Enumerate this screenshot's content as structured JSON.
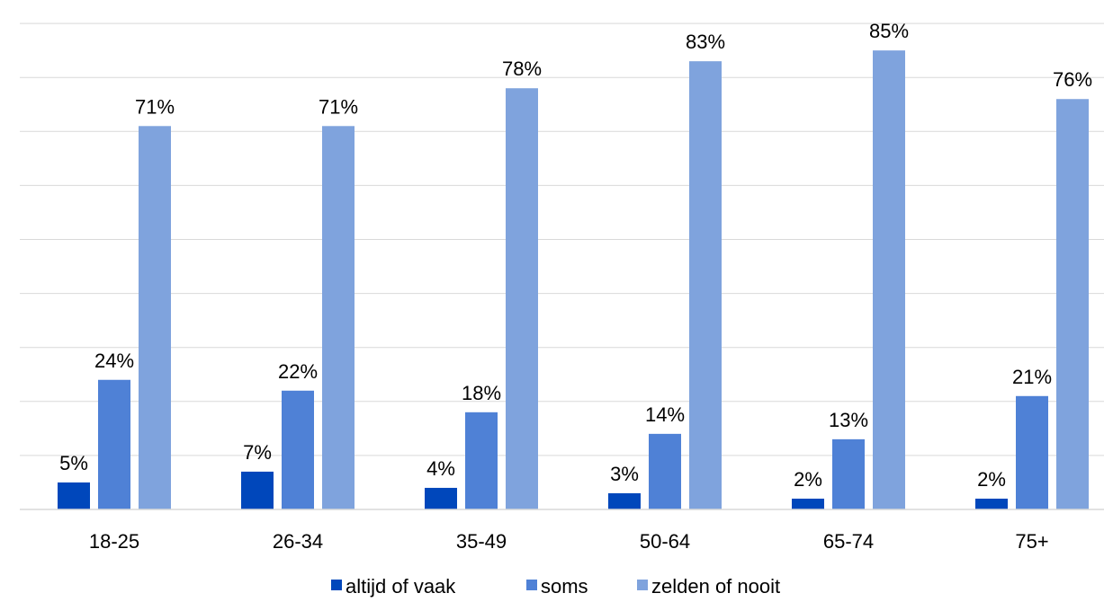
{
  "chart_data": {
    "type": "bar",
    "title": "",
    "xlabel": "",
    "ylabel": "",
    "categories": [
      "18-25",
      "26-34",
      "35-49",
      "50-64",
      "65-74",
      "75+"
    ],
    "series": [
      {
        "name": "altijd of vaak",
        "values": [
          5,
          7,
          4,
          3,
          2,
          2
        ],
        "labels": [
          "5%",
          "7%",
          "4%",
          "3%",
          "2%",
          "2%"
        ],
        "color": "#0047BB"
      },
      {
        "name": "soms",
        "values": [
          24,
          22,
          18,
          14,
          13,
          21
        ],
        "labels": [
          "24%",
          "22%",
          "18%",
          "14%",
          "13%",
          "21%"
        ],
        "color": "#4F81D6"
      },
      {
        "name": "zelden of nooit",
        "values": [
          71,
          71,
          78,
          83,
          85,
          76
        ],
        "labels": [
          "71%",
          "71%",
          "78%",
          "83%",
          "85%",
          "76%"
        ],
        "color": "#7FA3DD"
      }
    ],
    "ylim": [
      0,
      90
    ],
    "y_axis_visible": false,
    "grid": true,
    "gridline_color": "#d9d9d9",
    "legend_position": "bottom"
  }
}
